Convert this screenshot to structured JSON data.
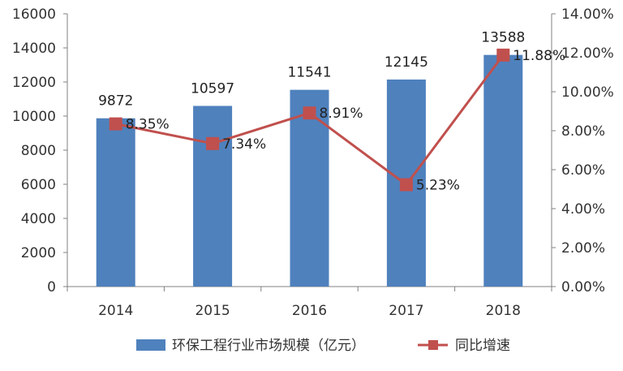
{
  "chart_data": {
    "type": "bar",
    "categories": [
      "2014",
      "2015",
      "2016",
      "2017",
      "2018"
    ],
    "series": [
      {
        "name": "环保工程行业市场规模（亿元）",
        "type": "bar",
        "axis": "left",
        "color": "#4f81bd",
        "values": [
          9872,
          10597,
          11541,
          12145,
          13588
        ],
        "labels": [
          "9872",
          "10597",
          "11541",
          "12145",
          "13588"
        ]
      },
      {
        "name": "同比增速",
        "type": "line",
        "axis": "right",
        "color": "#c0504d",
        "values": [
          8.35,
          7.34,
          8.91,
          5.23,
          11.88
        ],
        "labels": [
          "8.35%",
          "7.34%",
          "8.91%",
          "5.23%",
          "11.88%"
        ]
      }
    ],
    "y_left": {
      "range": [
        0,
        16000
      ],
      "ticks": [
        "0",
        "2000",
        "4000",
        "6000",
        "8000",
        "10000",
        "12000",
        "14000",
        "16000"
      ]
    },
    "y_right": {
      "range": [
        0,
        14
      ],
      "ticks": [
        "0.00%",
        "2.00%",
        "4.00%",
        "6.00%",
        "8.00%",
        "10.00%",
        "12.00%",
        "14.00%"
      ]
    },
    "legend_position": "bottom",
    "grid": false
  }
}
